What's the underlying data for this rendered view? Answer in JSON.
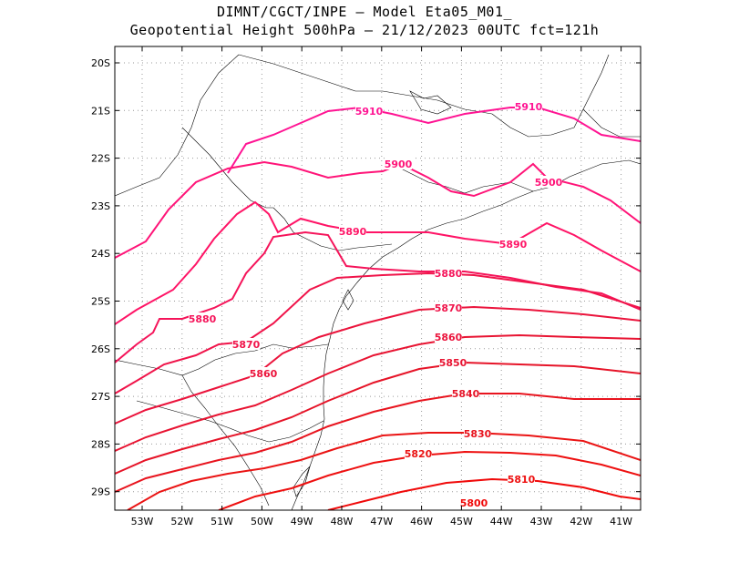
{
  "title_line1": "DIMNT/CGCT/INPE –  Model Eta05_M01_",
  "title_line2": "Geopotential Height 500hPa –  21/12/2023 00UTC fct=121h",
  "lat_labels": [
    "20S",
    "21S",
    "22S",
    "23S",
    "24S",
    "25S",
    "26S",
    "27S",
    "28S",
    "29S"
  ],
  "lon_labels": [
    "53W",
    "52W",
    "51W",
    "50W",
    "49W",
    "48W",
    "47W",
    "46W",
    "45W",
    "44W",
    "43W",
    "42W",
    "41W"
  ],
  "contours": [
    {
      "value": 5910,
      "label": "5910",
      "color": "#ff1493"
    },
    {
      "value": 5900,
      "label": "5900",
      "color": "#ff1478"
    },
    {
      "value": 5890,
      "label": "5890",
      "color": "#ff1466"
    },
    {
      "value": 5880,
      "label": "5880",
      "color": "#f5145a"
    },
    {
      "value": 5870,
      "label": "5870",
      "color": "#f0144a"
    },
    {
      "value": 5860,
      "label": "5860",
      "color": "#eb143c"
    },
    {
      "value": 5850,
      "label": "5850",
      "color": "#e81432"
    },
    {
      "value": 5840,
      "label": "5840",
      "color": "#e61428"
    },
    {
      "value": 5830,
      "label": "5830",
      "color": "#e8141e"
    },
    {
      "value": 5820,
      "label": "5820",
      "color": "#ea1414"
    },
    {
      "value": 5810,
      "label": "5810",
      "color": "#ee1010"
    },
    {
      "value": 5800,
      "label": "5800",
      "color": "#f00a0a"
    }
  ]
}
